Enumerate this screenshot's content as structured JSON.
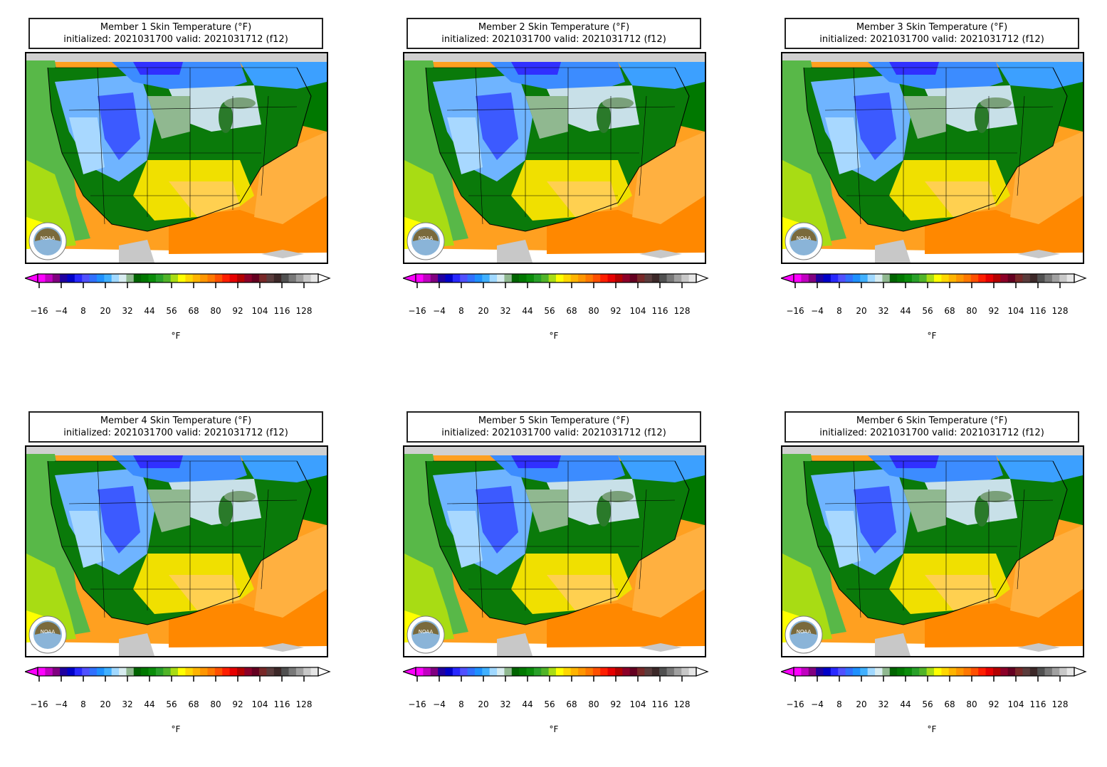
{
  "panels": [
    {
      "title_line1": "Member 1 Skin Temperature (°F)",
      "title_line2": "initialized: 2021031700 valid: 2021031712 (f12)"
    },
    {
      "title_line1": "Member 2 Skin Temperature (°F)",
      "title_line2": "initialized: 2021031700 valid: 2021031712 (f12)"
    },
    {
      "title_line1": "Member 3 Skin Temperature (°F)",
      "title_line2": "initialized: 2021031700 valid: 2021031712 (f12)"
    },
    {
      "title_line1": "Member 4 Skin Temperature (°F)",
      "title_line2": "initialized: 2021031700 valid: 2021031712 (f12)"
    },
    {
      "title_line1": "Member 5 Skin Temperature (°F)",
      "title_line2": "initialized: 2021031700 valid: 2021031712 (f12)"
    },
    {
      "title_line1": "Member 6 Skin Temperature (°F)",
      "title_line2": "initialized: 2021031700 valid: 2021031712 (f12)"
    }
  ],
  "colorbar": {
    "unit": "°F",
    "ticks": [
      "−16",
      "−4",
      "8",
      "20",
      "32",
      "44",
      "56",
      "68",
      "80",
      "92",
      "104",
      "116",
      "128"
    ],
    "colors": [
      "#ff00ff",
      "#c000c0",
      "#800080",
      "#2000a0",
      "#0000c8",
      "#2828ff",
      "#5050ff",
      "#3070ff",
      "#1e90ff",
      "#40b0ff",
      "#a0d8ff",
      "#d8ecf0",
      "#90b890",
      "#006400",
      "#007800",
      "#0a8c0a",
      "#28a028",
      "#50b428",
      "#a8dc14",
      "#ffff00",
      "#ffd700",
      "#ffb400",
      "#ff9600",
      "#ff7800",
      "#ff5000",
      "#ff1e00",
      "#e60000",
      "#b40000",
      "#8c0028",
      "#640020",
      "#782828",
      "#5a3c3c",
      "#3c2828",
      "#505050",
      "#787878",
      "#a0a0a0",
      "#c8c8c8",
      "#e6e6e6"
    ]
  },
  "logo_text": "NOAA"
}
